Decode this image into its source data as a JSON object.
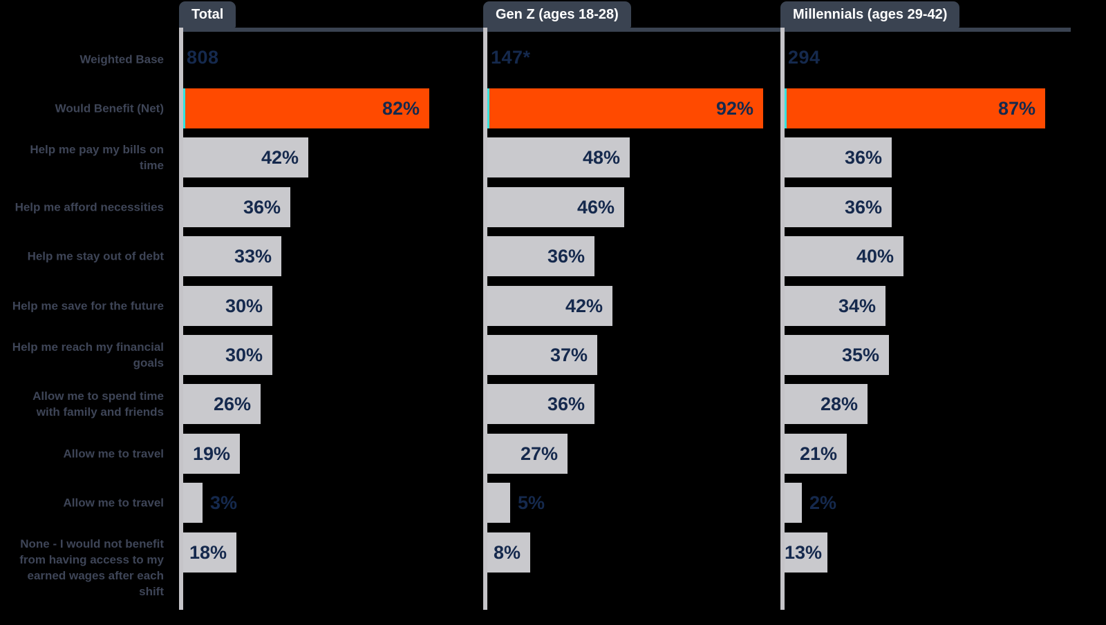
{
  "chart_data": {
    "type": "bar",
    "orientation": "horizontal",
    "weighted_base_row_label": "Weighted Base",
    "categories": [
      "Would Benefit (Net)",
      "Help me pay my bills on\ntime",
      "Help me afford necessities",
      "Help me stay out of debt",
      "Help me save for the future",
      "Help me reach my financial\ngoals",
      "Allow me to spend time\nwith family and friends",
      "Allow me to travel",
      "Allow me to travel",
      "None - I would not benefit\nfrom having access to my\nearned wages after each\nshift"
    ],
    "highlight_category_index": 0,
    "series": [
      {
        "name": "Total",
        "weighted_base": "808",
        "values": [
          82,
          42,
          36,
          33,
          30,
          30,
          26,
          19,
          3,
          18
        ],
        "labels": [
          "82%",
          "42%",
          "36%",
          "33%",
          "30%",
          "30%",
          "26%",
          "19%",
          "3%",
          "18%"
        ]
      },
      {
        "name": "Gen Z (ages 18-28)",
        "weighted_base": "147*",
        "values": [
          92,
          48,
          46,
          36,
          42,
          37,
          36,
          27,
          5,
          8
        ],
        "labels": [
          "92%",
          "48%",
          "46%",
          "36%",
          "42%",
          "37%",
          "36%",
          "27%",
          "5%",
          "8%"
        ]
      },
      {
        "name": "Millennials (ages 29-42)",
        "weighted_base": "294",
        "values": [
          87,
          36,
          36,
          40,
          34,
          35,
          28,
          21,
          2,
          13
        ],
        "labels": [
          "87%",
          "36%",
          "36%",
          "40%",
          "34%",
          "35%",
          "28%",
          "21%",
          "2%",
          "13%"
        ]
      }
    ],
    "xlim": [
      0,
      100
    ],
    "value_suffix": "%",
    "gridlines": false,
    "legend": null,
    "colors": {
      "background": "#000000",
      "highlight_bar": "#ff4a00",
      "bar": "#c9c9cd",
      "accent_strip": "#35e3de",
      "value_text": "#15294d",
      "category_text": "#3e4557",
      "tab_background": "#3a4351",
      "tab_text": "#ffffff",
      "axis_line": "#c5c4c8"
    }
  }
}
